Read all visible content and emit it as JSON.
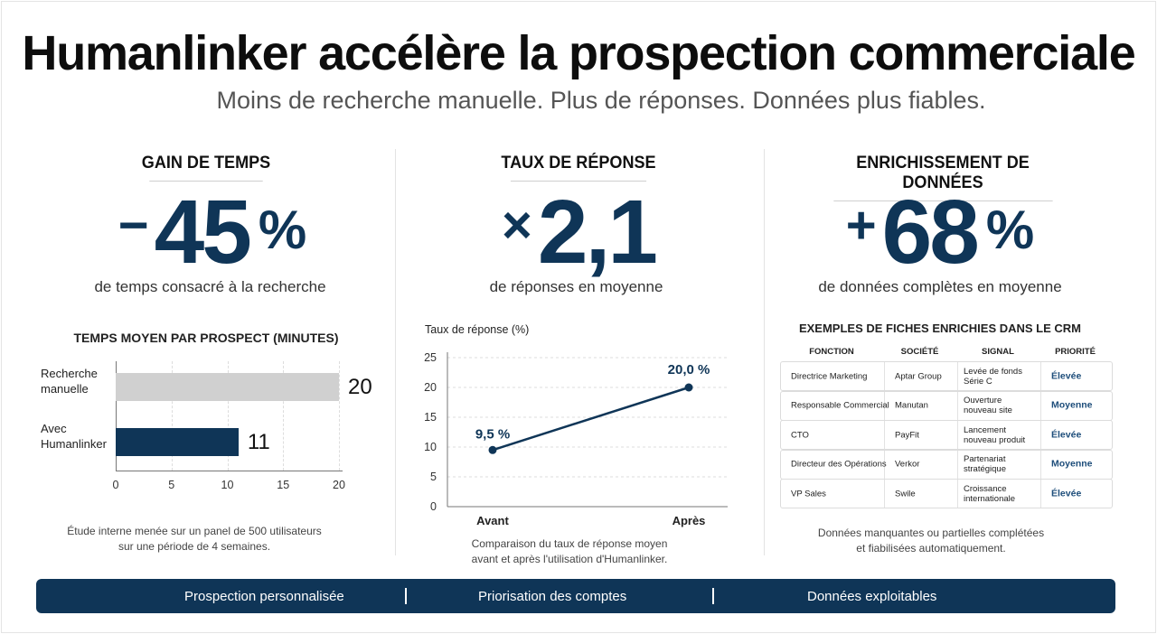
{
  "header": {
    "title": "Humanlinker accélère la prospection commerciale",
    "subtitle": "Moins de recherche manuelle. Plus de réponses. Données plus fiables."
  },
  "kpis": [
    {
      "title": "GAIN DE TEMPS",
      "sign": "−",
      "value": "45",
      "unit": "%",
      "description": "de temps consacré à la recherche"
    },
    {
      "title": "TAUX DE RÉPONSE",
      "sign": "×",
      "value": "2,1",
      "unit": "",
      "description": "de réponses en moyenne"
    },
    {
      "title": "ENRICHISSEMENT DE DONNÉES",
      "sign": "+",
      "value": "68",
      "unit": "%",
      "description": "de données complètes en moyenne"
    }
  ],
  "colors": {
    "accent": "#0f3557",
    "bar_manual": "#d0d0d0",
    "bar_humanlinker": "#0f3557",
    "priority_text": "#1d4d7a"
  },
  "chart_data": [
    {
      "type": "bar",
      "orientation": "horizontal",
      "title": "TEMPS MOYEN PAR PROSPECT (MINUTES)",
      "categories": [
        "Recherche\nmanuelle",
        "Avec\nHumanlinker"
      ],
      "values": [
        20,
        11
      ],
      "value_labels": [
        "20",
        "11"
      ],
      "xlim": [
        0,
        20
      ],
      "xticks": [
        "0",
        "5",
        "10",
        "15",
        "20"
      ],
      "grid": true,
      "footnote": "Étude interne menée sur un panel de 500 utilisateurs\nsur une période de 4 semaines."
    },
    {
      "type": "line",
      "ylabel": "Taux de réponse (%)",
      "categories": [
        "Avant",
        "Après"
      ],
      "values": [
        9.5,
        20.0
      ],
      "point_labels": [
        "9,5 %",
        "20,0 %"
      ],
      "ylim": [
        0,
        25
      ],
      "yticks": [
        "0",
        "5",
        "10",
        "15",
        "20",
        "25"
      ],
      "grid": true,
      "footnote": "Comparaison du taux de réponse moyen\navant et après l'utilisation d'Humanlinker."
    },
    {
      "type": "table",
      "title": "EXEMPLES DE FICHES ENRICHIES DANS LE CRM",
      "columns": [
        "FONCTION",
        "SOCIÉTÉ",
        "SIGNAL",
        "PRIORITÉ"
      ],
      "rows": [
        [
          "Directrice Marketing",
          "Aptar Group",
          "Levée de fonds\nSérie C",
          "Élevée"
        ],
        [
          "Responsable Commercial",
          "Manutan",
          "Ouverture\nnouveau site",
          "Moyenne"
        ],
        [
          "CTO",
          "PayFit",
          "Lancement\nnouveau produit",
          "Élevée"
        ],
        [
          "Directeur des Opérations",
          "Verkor",
          "Partenariat\nstratégique",
          "Moyenne"
        ],
        [
          "VP Sales",
          "Swile",
          "Croissance\ninternationale",
          "Élevée"
        ]
      ],
      "footnote": "Données manquantes ou partielles complétées\net fiabilisées automatiquement."
    }
  ],
  "banner": {
    "items": [
      "Prospection personnalisée",
      "Priorisation des comptes",
      "Données exploitables"
    ]
  }
}
